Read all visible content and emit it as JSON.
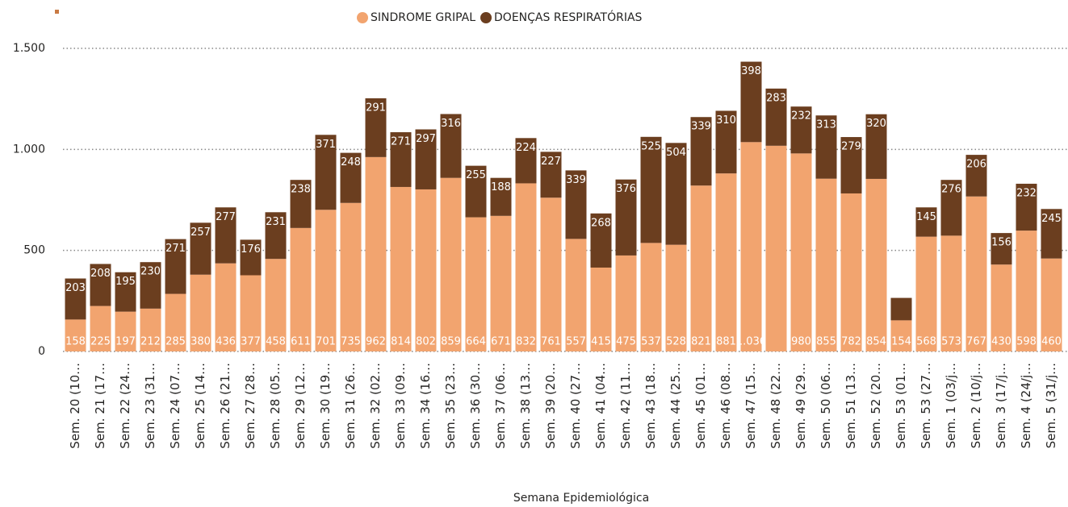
{
  "chart_data": {
    "type": "stacked-bar",
    "x_label": "Semana Epidemiológica",
    "categories": [
      "Sem. 20 (10…",
      "Sem. 21 (17…",
      "Sem. 22 (24…",
      "Sem. 23 (31…",
      "Sem. 24 (07…",
      "Sem. 25 (14…",
      "Sem. 26 (21…",
      "Sem. 27 (28…",
      "Sem. 28 (05…",
      "Sem. 29 (12…",
      "Sem. 30 (19…",
      "Sem. 31 (26…",
      "Sem. 32 (02…",
      "Sem. 33 (09…",
      "Sem. 34 (16…",
      "Sem. 35 (23…",
      "Sem. 36 (30…",
      "Sem. 37 (06…",
      "Sem. 38 (13…",
      "Sem. 39 (20…",
      "Sem. 40 (27…",
      "Sem. 41 (04…",
      "Sem. 42 (11…",
      "Sem. 43 (18…",
      "Sem. 44 (25…",
      "Sem. 45 (01…",
      "Sem. 46 (08…",
      "Sem. 47 (15…",
      "Sem. 48 (22…",
      "Sem. 49 (29…",
      "Sem. 50 (06…",
      "Sem. 51 (13…",
      "Sem. 52 (20…",
      "Sem. 53 (01…",
      "Sem. 53 (27…",
      "Sem. 1 (03/j…",
      "Sem. 2 (10/j…",
      "Sem. 3 (17/j…",
      "Sem. 4 (24/j…",
      "Sem. 5 (31/j…"
    ],
    "series": [
      {
        "name": "SINDROME GRIPAL",
        "color": "#f2a46f",
        "values": [
          158,
          225,
          197,
          212,
          285,
          380,
          436,
          377,
          458,
          611,
          701,
          735,
          962,
          814,
          802,
          859,
          664,
          671,
          832,
          761,
          557,
          415,
          475,
          537,
          528,
          821,
          881,
          1036,
          1018,
          980,
          855,
          782,
          854,
          154,
          568,
          573,
          767,
          430,
          598,
          460
        ],
        "value_labels": [
          "158",
          "225",
          "197",
          "212",
          "285",
          "380",
          "436",
          "377",
          "458",
          "611",
          "701",
          "735",
          "962",
          "814",
          "802",
          "859",
          "664",
          "671",
          "832",
          "761",
          "557",
          "415",
          "475",
          "537",
          "528",
          "821",
          "881",
          "1.036",
          null,
          "980",
          "855",
          "782",
          "854",
          "154",
          "568",
          "573",
          "767",
          "430",
          "598",
          "460"
        ]
      },
      {
        "name": "DOENÇAS RESPIRATÓRIAS",
        "color": "#6b3e1f",
        "values": [
          203,
          208,
          195,
          230,
          271,
          257,
          277,
          176,
          231,
          238,
          371,
          248,
          291,
          271,
          297,
          316,
          255,
          188,
          224,
          227,
          339,
          268,
          376,
          525,
          504,
          339,
          310,
          398,
          283,
          232,
          313,
          279,
          320,
          111,
          145,
          276,
          206,
          156,
          232,
          245
        ],
        "value_labels": [
          "203",
          "208",
          "195",
          "230",
          "271",
          "257",
          "277",
          "176",
          "231",
          "238",
          "371",
          "248",
          "291",
          "271",
          "297",
          "316",
          "255",
          "188",
          "224",
          "227",
          "339",
          "268",
          "376",
          "525",
          "504",
          "339",
          "310",
          "398",
          "283",
          "232",
          "313",
          "279",
          "320",
          null,
          "145",
          "276",
          "206",
          "156",
          "232",
          "245"
        ]
      }
    ],
    "ylim": [
      0,
      1500
    ],
    "yticks": [
      0,
      500,
      {
        "value": 1000,
        "label": "1.000"
      },
      {
        "value": 1500,
        "label": "1.500"
      }
    ],
    "grid": true
  }
}
